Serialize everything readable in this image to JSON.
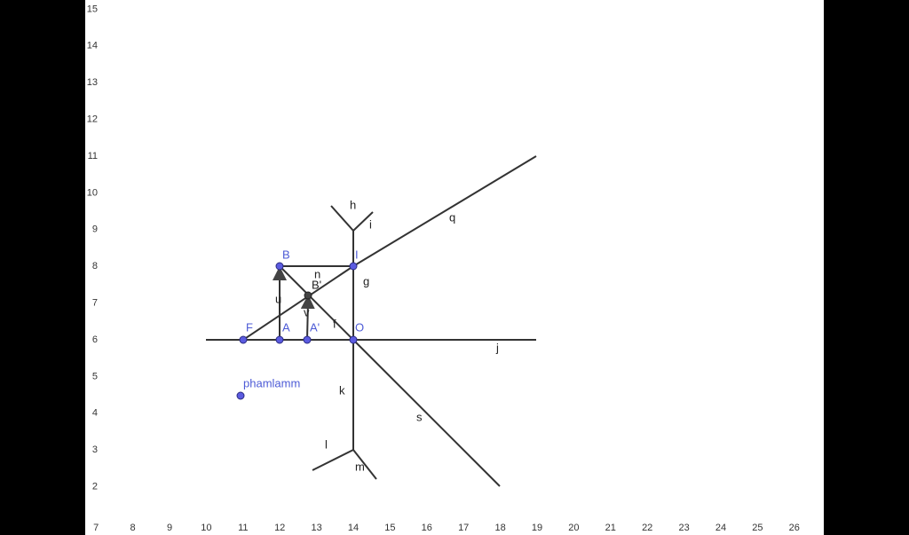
{
  "axes": {
    "x_labels": [
      7,
      8,
      9,
      10,
      11,
      12,
      13,
      14,
      15,
      16,
      17,
      18,
      19,
      20,
      21,
      22,
      23,
      24,
      25,
      26
    ],
    "y_labels": [
      2,
      3,
      4,
      5,
      6,
      7,
      8,
      9,
      10,
      11,
      12,
      13,
      14,
      15
    ]
  },
  "labels": {
    "h": "h",
    "i": "i",
    "q": "q",
    "B": "B",
    "I": "I",
    "n": "n",
    "g": "g",
    "B_prime": "B'",
    "u": "u",
    "v": "v",
    "f": "f",
    "F": "F",
    "A": "A",
    "A_prime": "A'",
    "O": "O",
    "j": "j",
    "phamlamm": "phamlamm",
    "k": "k",
    "s": "s",
    "l": "l",
    "m": "m"
  }
}
